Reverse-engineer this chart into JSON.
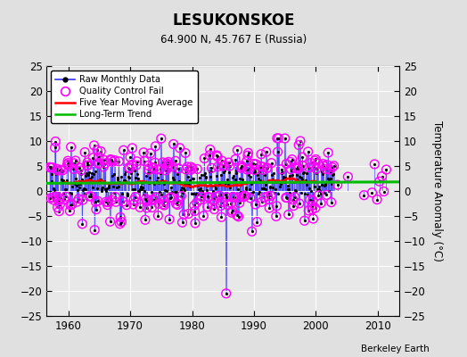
{
  "title": "LESUKONSKOE",
  "subtitle": "64.900 N, 45.767 E (Russia)",
  "ylabel": "Temperature Anomaly (°C)",
  "credit": "Berkeley Earth",
  "ylim": [
    -25,
    25
  ],
  "xlim": [
    1956.5,
    2013.5
  ],
  "yticks": [
    -25,
    -20,
    -15,
    -10,
    -5,
    0,
    5,
    10,
    15,
    20,
    25
  ],
  "xticks": [
    1960,
    1970,
    1980,
    1990,
    2000,
    2010
  ],
  "bg_color": "#e0e0e0",
  "plot_bg_color": "#e8e8e8",
  "raw_color": "#3333ff",
  "qc_color": "#ff00ff",
  "moving_avg_color": "#ff0000",
  "trend_color": "#00bb00",
  "grid_color": "#ffffff",
  "seed": 17,
  "start_year": 1957,
  "end_year": 2003,
  "sparse_end_year": 2012
}
